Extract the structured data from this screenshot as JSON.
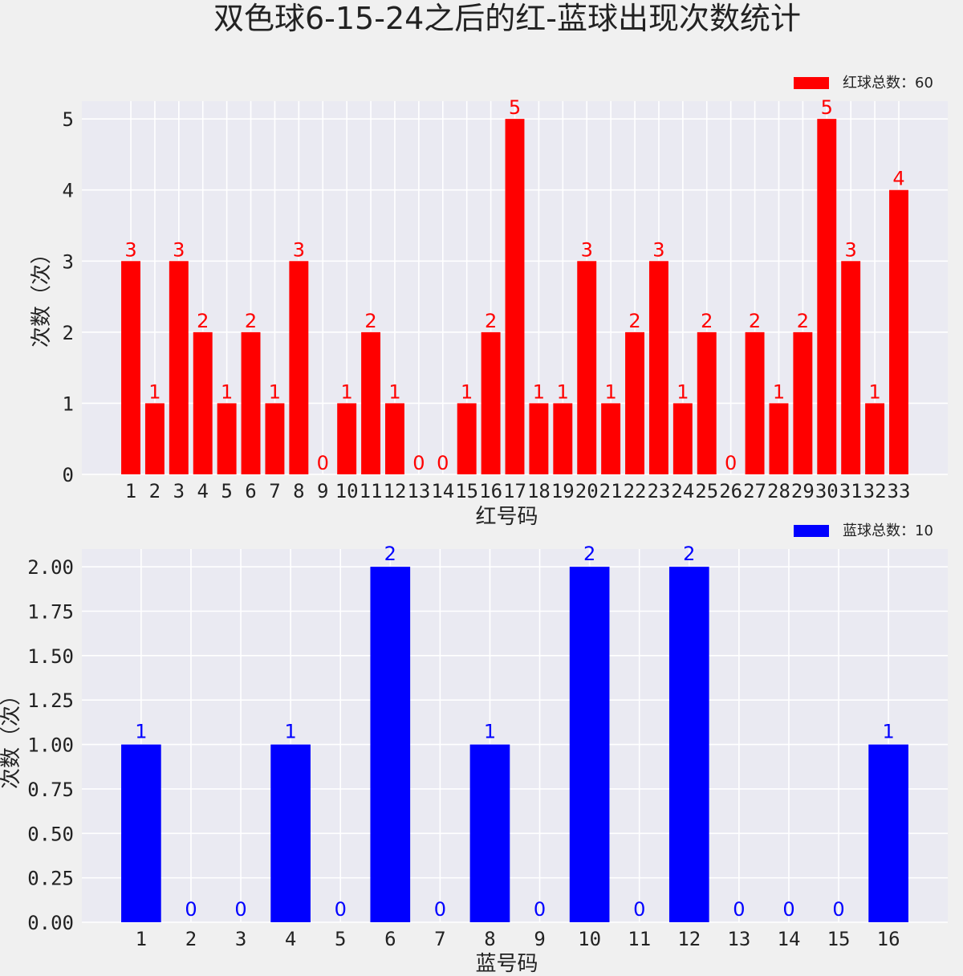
{
  "title": "双色球6-15-24之后的红-蓝球出现次数统计",
  "chart_data": [
    {
      "type": "bar",
      "name": "red",
      "color": "#ff0000",
      "legend": "红球总数：60",
      "xlabel": "红号码",
      "ylabel": "次数（次）",
      "categories": [
        "1",
        "2",
        "3",
        "4",
        "5",
        "6",
        "7",
        "8",
        "9",
        "10",
        "11",
        "12",
        "13",
        "14",
        "15",
        "16",
        "17",
        "18",
        "19",
        "20",
        "21",
        "22",
        "23",
        "24",
        "25",
        "26",
        "27",
        "28",
        "29",
        "30",
        "31",
        "32",
        "33"
      ],
      "values": [
        3,
        1,
        3,
        2,
        1,
        2,
        1,
        3,
        0,
        1,
        2,
        1,
        0,
        0,
        1,
        2,
        5,
        1,
        1,
        3,
        1,
        2,
        3,
        1,
        2,
        0,
        2,
        1,
        2,
        5,
        3,
        1,
        4
      ],
      "ylim": [
        0,
        5.25
      ],
      "yticks": [
        "0",
        "1",
        "2",
        "3",
        "4",
        "5"
      ],
      "grid": true,
      "legend_position": "top-right"
    },
    {
      "type": "bar",
      "name": "blue",
      "color": "#0000ff",
      "legend": "蓝球总数：10",
      "xlabel": "蓝号码",
      "ylabel": "次数（次）",
      "categories": [
        "1",
        "2",
        "3",
        "4",
        "5",
        "6",
        "7",
        "8",
        "9",
        "10",
        "11",
        "12",
        "13",
        "14",
        "15",
        "16"
      ],
      "values": [
        1,
        0,
        0,
        1,
        0,
        2,
        0,
        1,
        0,
        2,
        0,
        2,
        0,
        0,
        0,
        1
      ],
      "ylim": [
        0,
        2.1
      ],
      "yticks": [
        "0.00",
        "0.25",
        "0.50",
        "0.75",
        "1.00",
        "1.25",
        "1.50",
        "1.75",
        "2.00"
      ],
      "grid": true,
      "legend_position": "top-right"
    }
  ]
}
